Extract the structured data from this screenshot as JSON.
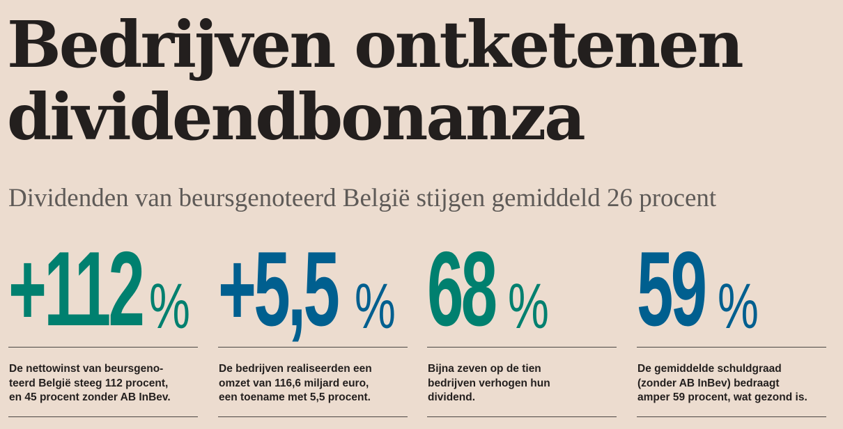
{
  "headline": {
    "line1": "Bedrijven ontketenen",
    "line2": "dividendbonanza"
  },
  "subheadline": "Dividenden van beursgenoteerd België stijgen gemiddeld 26 procent",
  "colors": {
    "background": "#ecdccf",
    "green": "#00806f",
    "blue": "#005f8f",
    "text": "#231f1e"
  },
  "stats": [
    {
      "number": "+112",
      "unit": "%",
      "color": "green",
      "lines": [
        "De nettowinst van beursgeno-",
        "teerd België steeg 112 procent,",
        "en 45 procent zonder AB InBev."
      ]
    },
    {
      "number": "+5,5",
      "unit": "%",
      "color": "blue",
      "lines": [
        "De bedrijven realiseerden een",
        "omzet van 116,6 miljard euro,",
        "een toename met 5,5 procent."
      ]
    },
    {
      "number": "68",
      "unit": "%",
      "color": "green",
      "lines": [
        "Bijna zeven op de tien",
        "bedrijven verhogen hun",
        "dividend."
      ]
    },
    {
      "number": "59",
      "unit": "%",
      "color": "blue",
      "lines": [
        "De gemiddelde schuldgraad",
        "(zonder AB InBev) bedraagt",
        "amper 59 procent, wat gezond is."
      ]
    }
  ]
}
